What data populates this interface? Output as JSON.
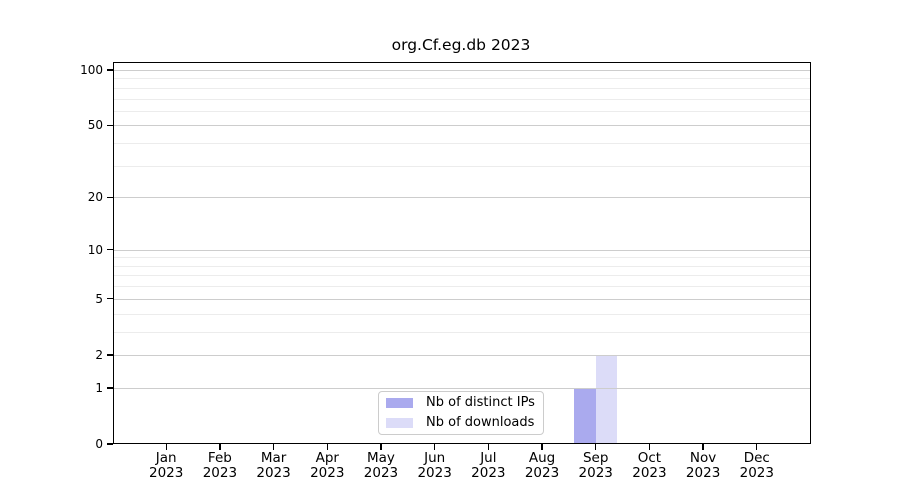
{
  "chart_data": {
    "type": "bar",
    "title": "org.Cf.eg.db 2023",
    "categories": [
      "Jan",
      "Feb",
      "Mar",
      "Apr",
      "May",
      "Jun",
      "Jul",
      "Aug",
      "Sep",
      "Oct",
      "Nov",
      "Dec"
    ],
    "category_year": "2023",
    "series": [
      {
        "name": "Nb of distinct IPs",
        "color": "#aaaaee",
        "values": [
          0,
          0,
          0,
          0,
          0,
          0,
          0,
          0,
          1,
          0,
          0,
          0
        ]
      },
      {
        "name": "Nb of downloads",
        "color": "#dcdcf8",
        "values": [
          0,
          0,
          0,
          0,
          0,
          0,
          0,
          0,
          2,
          0,
          0,
          0
        ]
      }
    ],
    "yscale": "log1p",
    "ylim": [
      0,
      110
    ],
    "yticks": [
      0,
      1,
      2,
      5,
      10,
      20,
      50,
      100
    ],
    "yticks_minor": [
      3,
      4,
      6,
      7,
      8,
      9,
      30,
      40,
      60,
      70,
      80,
      90
    ],
    "grid": true,
    "legend_position": "lower center",
    "colors": {
      "grid_major": "#cdcdcd",
      "grid_minor": "#ececec",
      "spine": "#000000",
      "background": "#ffffff"
    }
  }
}
